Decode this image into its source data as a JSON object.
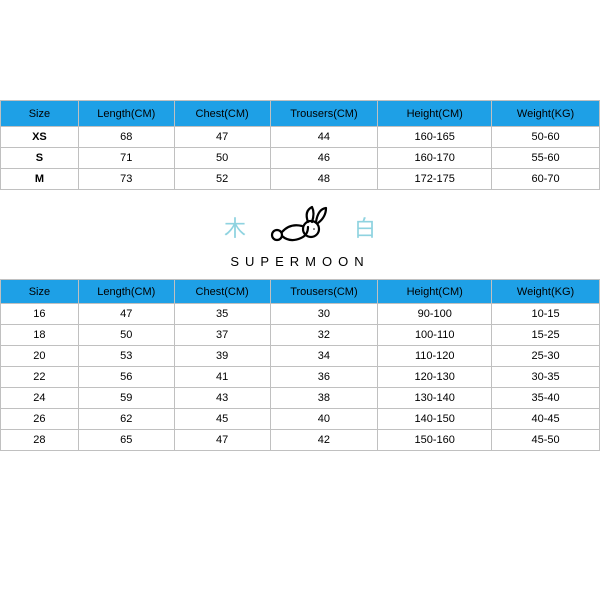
{
  "colors": {
    "header_bg": "#1ea0e6",
    "header_text": "#000000",
    "cell_border": "#c0c0c0",
    "cell_text": "#000000",
    "background": "#ffffff",
    "accent_cjk": "#8fd3e0"
  },
  "adult_table": {
    "type": "table",
    "columns": [
      "Size",
      "Length(CM)",
      "Chest(CM)",
      "Trousers(CM)",
      "Height(CM)",
      "Weight(KG)"
    ],
    "col_widths_pct": [
      13,
      16,
      16,
      18,
      19,
      18
    ],
    "header_fontsize": 11,
    "cell_fontsize": 11,
    "size_bold": true,
    "rows": [
      [
        "XS",
        "68",
        "47",
        "44",
        "160-165",
        "50-60"
      ],
      [
        "S",
        "71",
        "50",
        "46",
        "160-170",
        "55-60"
      ],
      [
        "M",
        "73",
        "52",
        "48",
        "172-175",
        "60-70"
      ]
    ]
  },
  "brand": {
    "left_char": "木",
    "right_char": "白",
    "name": "SUPERMOON",
    "rabbit_stroke": "#000000",
    "rabbit_stroke_width": 2.2
  },
  "kids_table": {
    "type": "table",
    "columns": [
      "Size",
      "Length(CM)",
      "Chest(CM)",
      "Trousers(CM)",
      "Height(CM)",
      "Weight(KG)"
    ],
    "col_widths_pct": [
      13,
      16,
      16,
      18,
      19,
      18
    ],
    "header_fontsize": 11,
    "cell_fontsize": 11,
    "rows": [
      [
        "16",
        "47",
        "35",
        "30",
        "90-100",
        "10-15"
      ],
      [
        "18",
        "50",
        "37",
        "32",
        "100-110",
        "15-25"
      ],
      [
        "20",
        "53",
        "39",
        "34",
        "110-120",
        "25-30"
      ],
      [
        "22",
        "56",
        "41",
        "36",
        "120-130",
        "30-35"
      ],
      [
        "24",
        "59",
        "43",
        "38",
        "130-140",
        "35-40"
      ],
      [
        "26",
        "62",
        "45",
        "40",
        "140-150",
        "40-45"
      ],
      [
        "28",
        "65",
        "47",
        "42",
        "150-160",
        "45-50"
      ]
    ]
  }
}
